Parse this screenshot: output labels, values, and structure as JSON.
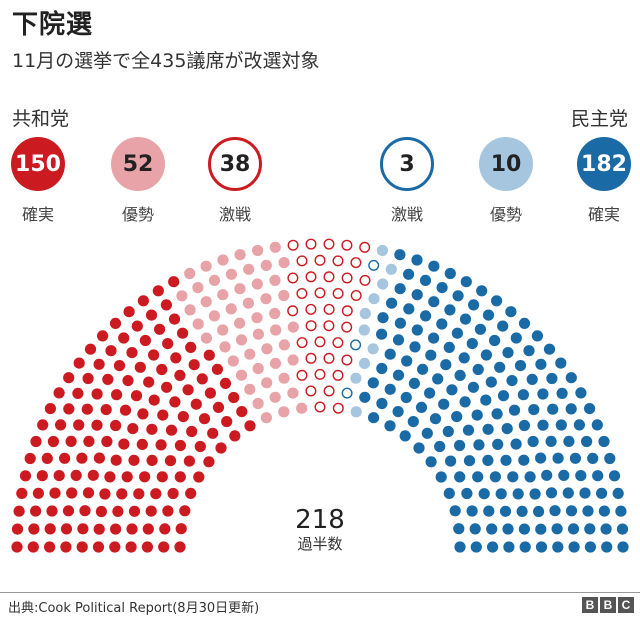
{
  "header": {
    "title": "下院選",
    "subtitle": "11月の選挙で全435議席が改選対象"
  },
  "parties": {
    "republican": {
      "label": "共和党",
      "stats": [
        {
          "value": "150",
          "label": "確実",
          "style": "solid",
          "color": "#cc1a21",
          "text_color": "#ffffff"
        },
        {
          "value": "52",
          "label": "優勢",
          "style": "solid",
          "color": "#e8a3a8",
          "text_color": "#222222"
        },
        {
          "value": "38",
          "label": "激戦",
          "style": "outline",
          "color": "#cc1a21",
          "text_color": "#222222"
        }
      ]
    },
    "democrat": {
      "label": "民主党",
      "stats": [
        {
          "value": "3",
          "label": "激戦",
          "style": "outline",
          "color": "#1a6aa6",
          "text_color": "#222222"
        },
        {
          "value": "10",
          "label": "優勢",
          "style": "solid",
          "color": "#a6c6df",
          "text_color": "#222222"
        },
        {
          "value": "182",
          "label": "確実",
          "style": "solid",
          "color": "#1a6aa6",
          "text_color": "#ffffff"
        }
      ]
    }
  },
  "majority": {
    "value": "218",
    "label": "過半数"
  },
  "footer": {
    "source": "出典:Cook Political Report(8月30日更新)",
    "logo": [
      "B",
      "B",
      "C"
    ]
  },
  "chart_data": {
    "type": "parliament-hemicycle",
    "title": "下院選",
    "subtitle": "11月の選挙で全435議席が改選対象",
    "total_seats": 435,
    "majority": 218,
    "rows": 11,
    "series": [
      {
        "name": "共和党 確実",
        "party": "Republican",
        "category": "Solid",
        "value": 150,
        "color": "#cc1a21",
        "fill": "solid"
      },
      {
        "name": "共和党 優勢",
        "party": "Republican",
        "category": "Likely/Lean",
        "value": 52,
        "color": "#e8a3a8",
        "fill": "solid"
      },
      {
        "name": "共和党 激戦",
        "party": "Republican",
        "category": "Toss-up",
        "value": 38,
        "color": "#cc1a21",
        "fill": "outline"
      },
      {
        "name": "民主党 激戦",
        "party": "Democrat",
        "category": "Toss-up",
        "value": 3,
        "color": "#1a6aa6",
        "fill": "outline"
      },
      {
        "name": "民主党 優勢",
        "party": "Democrat",
        "category": "Likely/Lean",
        "value": 10,
        "color": "#a6c6df",
        "fill": "solid"
      },
      {
        "name": "民主党 確実",
        "party": "Democrat",
        "category": "Solid",
        "value": 182,
        "color": "#1a6aa6",
        "fill": "solid"
      }
    ],
    "source": "Cook Political Report (8月30日更新)"
  }
}
